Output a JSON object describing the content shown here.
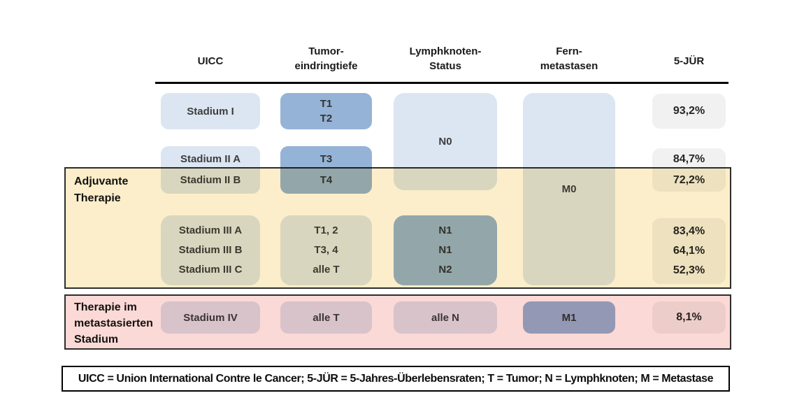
{
  "columns": [
    {
      "lines": [
        "UICC"
      ]
    },
    {
      "lines": [
        "Tumor-",
        "eindringtiefe"
      ]
    },
    {
      "lines": [
        "Lymphknoten-",
        "Status"
      ]
    },
    {
      "lines": [
        "Fern-",
        "metastasen"
      ]
    },
    {
      "lines": [
        "5-JÜR"
      ]
    }
  ],
  "cells": {
    "stage1": {
      "label": "Stadium I"
    },
    "t12": {
      "lines": [
        "T1",
        "T2"
      ]
    },
    "n0": {
      "label": "N0"
    },
    "m0": {
      "label": "M0"
    },
    "jur1": {
      "label": "93,2%"
    },
    "stage2": {
      "lines": [
        "Stadium II A",
        "Stadium II B"
      ]
    },
    "t34": {
      "lines": [
        "T3",
        "T4"
      ]
    },
    "jur2": {
      "lines": [
        "84,7%",
        "72,2%"
      ]
    },
    "stage3": {
      "lines": [
        "Stadium III A",
        "Stadium III B",
        "Stadium III C"
      ]
    },
    "t3": {
      "lines": [
        "T1, 2",
        "T3, 4",
        "alle T"
      ]
    },
    "n3": {
      "lines": [
        "N1",
        "N1",
        "N2"
      ]
    },
    "jur3": {
      "lines": [
        "83,4%",
        "64,1%",
        "52,3%"
      ]
    },
    "stage4": {
      "label": "Stadium IV"
    },
    "t4": {
      "label": "alle T"
    },
    "n4": {
      "label": "alle N"
    },
    "m1": {
      "label": "M1"
    },
    "jur4": {
      "label": "8,1%"
    }
  },
  "overlays": {
    "adjuvant": {
      "lines": [
        "Adjuvante",
        "Therapie"
      ],
      "fill": "#fceeca",
      "border": "#2d2d2d"
    },
    "metastatic": {
      "lines": [
        "Therapie im",
        "metastasierten",
        "Stadium"
      ],
      "fill": "#fbd9d6",
      "border": "#2d2d2d"
    }
  },
  "footnote": "UICC = Union International Contre le Cancer; 5-JÜR = 5-Jahres-Überlebensraten; T = Tumor; N = Lymphknoten; M = Metastase",
  "colors": {
    "box_light_blue": "#dce6f2",
    "box_medium_blue": "#95b3d7",
    "box_light_gray": "#f1f1f1",
    "overlay_adjuvant": "#fceeca",
    "overlay_metastatic": "#fbd9d6",
    "header_rule": "#000000"
  }
}
